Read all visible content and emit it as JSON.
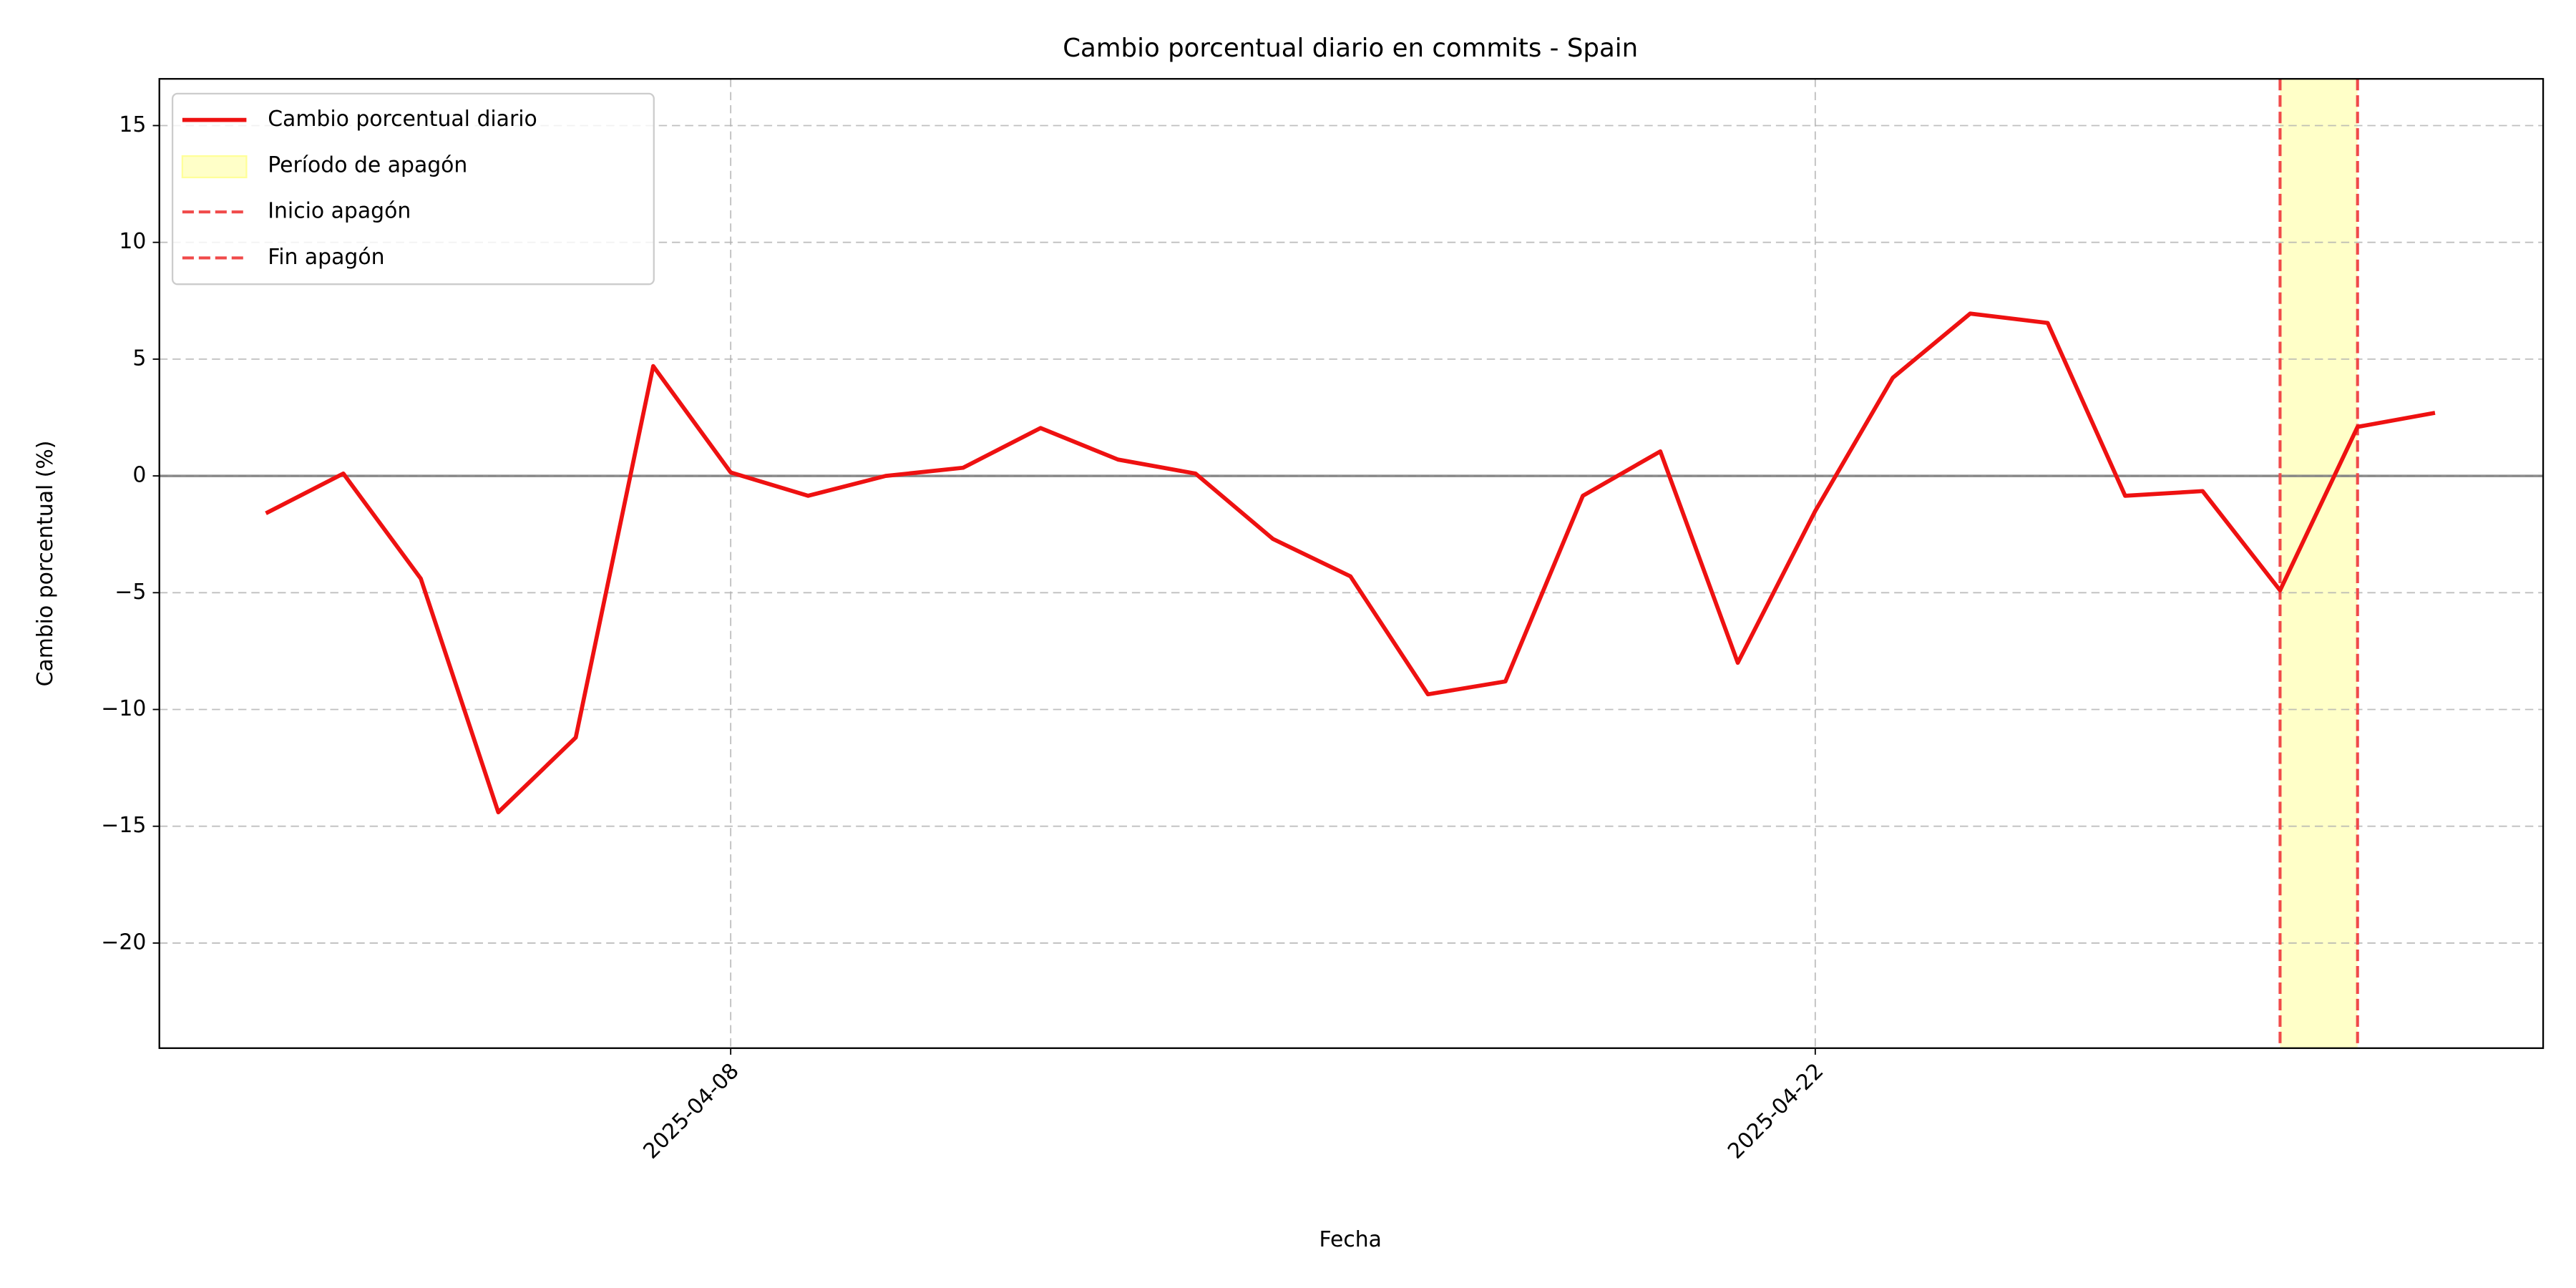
{
  "chart_data": {
    "type": "line",
    "title": "Cambio porcentual diario en commits - Spain",
    "xlabel": "Fecha",
    "ylabel": "Cambio porcentual (%)",
    "x": [
      "2025-04-02",
      "2025-04-03",
      "2025-04-04",
      "2025-04-05",
      "2025-04-06",
      "2025-04-07",
      "2025-04-08",
      "2025-04-09",
      "2025-04-10",
      "2025-04-11",
      "2025-04-12",
      "2025-04-13",
      "2025-04-14",
      "2025-04-15",
      "2025-04-16",
      "2025-04-17",
      "2025-04-18",
      "2025-04-19",
      "2025-04-20",
      "2025-04-21",
      "2025-04-22",
      "2025-04-23",
      "2025-04-24",
      "2025-04-25",
      "2025-04-26",
      "2025-04-27",
      "2025-04-28",
      "2025-04-29",
      "2025-04-30"
    ],
    "series": [
      {
        "name": "Cambio porcentual diario",
        "color": "#ee1111",
        "values": [
          -1.6,
          0.1,
          -4.4,
          -14.4,
          -11.2,
          4.7,
          0.15,
          -0.85,
          0.0,
          0.35,
          2.05,
          0.7,
          0.1,
          -2.7,
          -4.3,
          -9.35,
          -8.8,
          -0.85,
          1.05,
          -8.0,
          -1.5,
          4.2,
          6.95,
          6.55,
          -0.85,
          -0.65,
          -4.9,
          2.1,
          2.7
        ]
      }
    ],
    "blackout": {
      "label": "Período de apagón",
      "start": "2025-04-28",
      "end": "2025-04-29",
      "color": "#ffffc8"
    },
    "markers": [
      {
        "label": "Inicio apagón",
        "x": "2025-04-28",
        "color": "#f04a4a"
      },
      {
        "label": "Fin apagón",
        "x": "2025-04-29",
        "color": "#f04a4a"
      }
    ],
    "reference_line": 0,
    "xlim": [
      "2025-03-31T15:00",
      "2025-05-01T09:30"
    ],
    "xticks": [
      "2025-04-08",
      "2025-04-22"
    ],
    "ylim": [
      -24.5,
      17
    ],
    "yticks": [
      {
        "value": -20,
        "label": "−20"
      },
      {
        "value": -15,
        "label": "−15"
      },
      {
        "value": -10,
        "label": "−10"
      },
      {
        "value": -5,
        "label": "−5"
      },
      0,
      5,
      10,
      15
    ],
    "grid": true,
    "legend": "upper left"
  }
}
